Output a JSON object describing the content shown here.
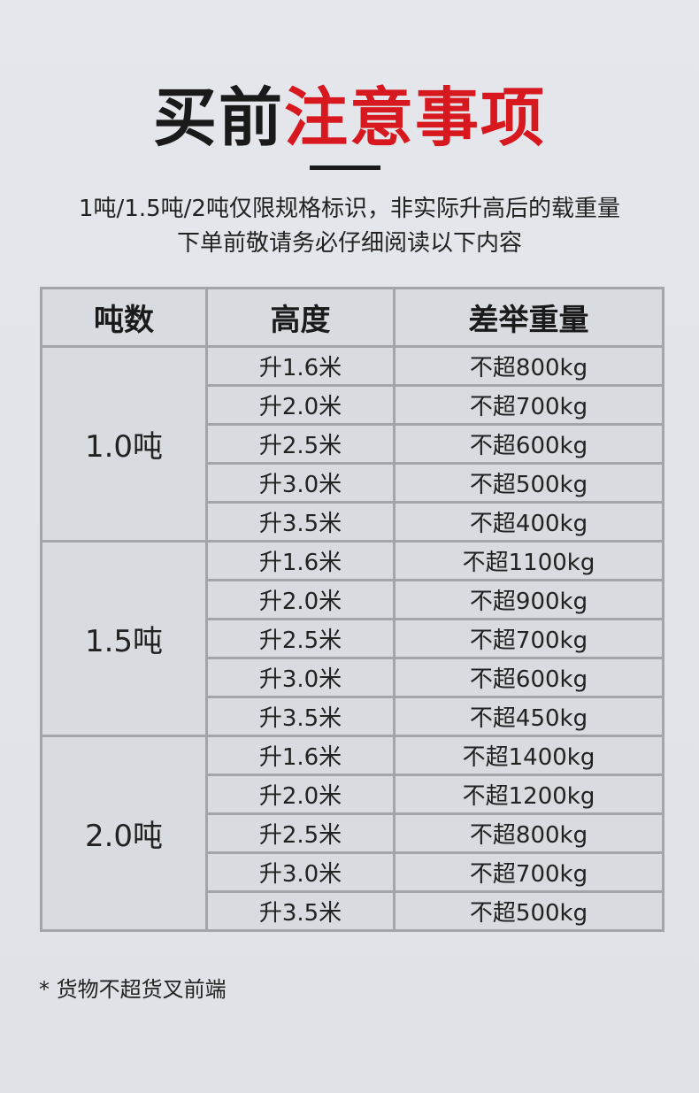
{
  "title": {
    "black": "买前",
    "red": "注意事项",
    "accent_color": "#d7191f"
  },
  "subtitle": [
    "1吨/1.5吨/2吨仅限规格标识，非实际升高后的载重量",
    "下单前敬请务必仔细阅读以下内容"
  ],
  "table": {
    "headers": [
      "吨数",
      "高度",
      "差举重量"
    ],
    "groups": [
      {
        "ton": "1.0吨",
        "rows": [
          [
            "升1.6米",
            "不超800kg"
          ],
          [
            "升2.0米",
            "不超700kg"
          ],
          [
            "升2.5米",
            "不超600kg"
          ],
          [
            "升3.0米",
            "不超500kg"
          ],
          [
            "升3.5米",
            "不超400kg"
          ]
        ]
      },
      {
        "ton": "1.5吨",
        "rows": [
          [
            "升1.6米",
            "不超1100kg"
          ],
          [
            "升2.0米",
            "不超900kg"
          ],
          [
            "升2.5米",
            "不超700kg"
          ],
          [
            "升3.0米",
            "不超600kg"
          ],
          [
            "升3.5米",
            "不超450kg"
          ]
        ]
      },
      {
        "ton": "2.0吨",
        "rows": [
          [
            "升1.6米",
            "不超1400kg"
          ],
          [
            "升2.0米",
            "不超1200kg"
          ],
          [
            "升2.5米",
            "不超800kg"
          ],
          [
            "升3.0米",
            "不超700kg"
          ],
          [
            "升3.5米",
            "不超500kg"
          ]
        ]
      }
    ]
  },
  "note": "* 货物不超货叉前端"
}
